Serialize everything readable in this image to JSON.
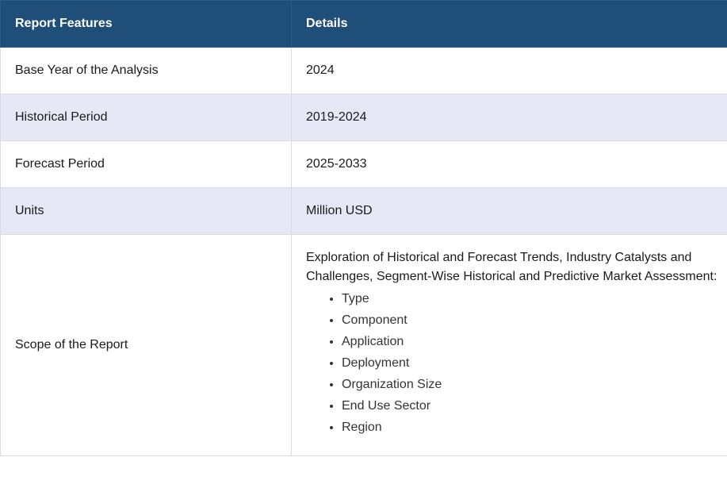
{
  "table": {
    "headers": [
      "Report Features",
      "Details"
    ],
    "rows": [
      {
        "feature": "Base Year of the Analysis",
        "detail": "2024"
      },
      {
        "feature": "Historical Period",
        "detail": "2019-2024"
      },
      {
        "feature": "Forecast Period",
        "detail": "2025-2033"
      },
      {
        "feature": "Units",
        "detail": "Million USD"
      }
    ],
    "scope": {
      "feature": "Scope of the Report",
      "intro": "Exploration of Historical and Forecast Trends, Industry Catalysts and Challenges, Segment-Wise Historical and Predictive Market Assessment:",
      "items": [
        "Type",
        "Component",
        "Application",
        "Deployment",
        "Organization Size",
        "End Use Sector",
        "Region"
      ]
    }
  },
  "colors": {
    "header_bg": "#1f4e79",
    "header_text": "#ffffff",
    "alt_row_bg": "#e6e9f5",
    "border": "#d9dbe3"
  }
}
